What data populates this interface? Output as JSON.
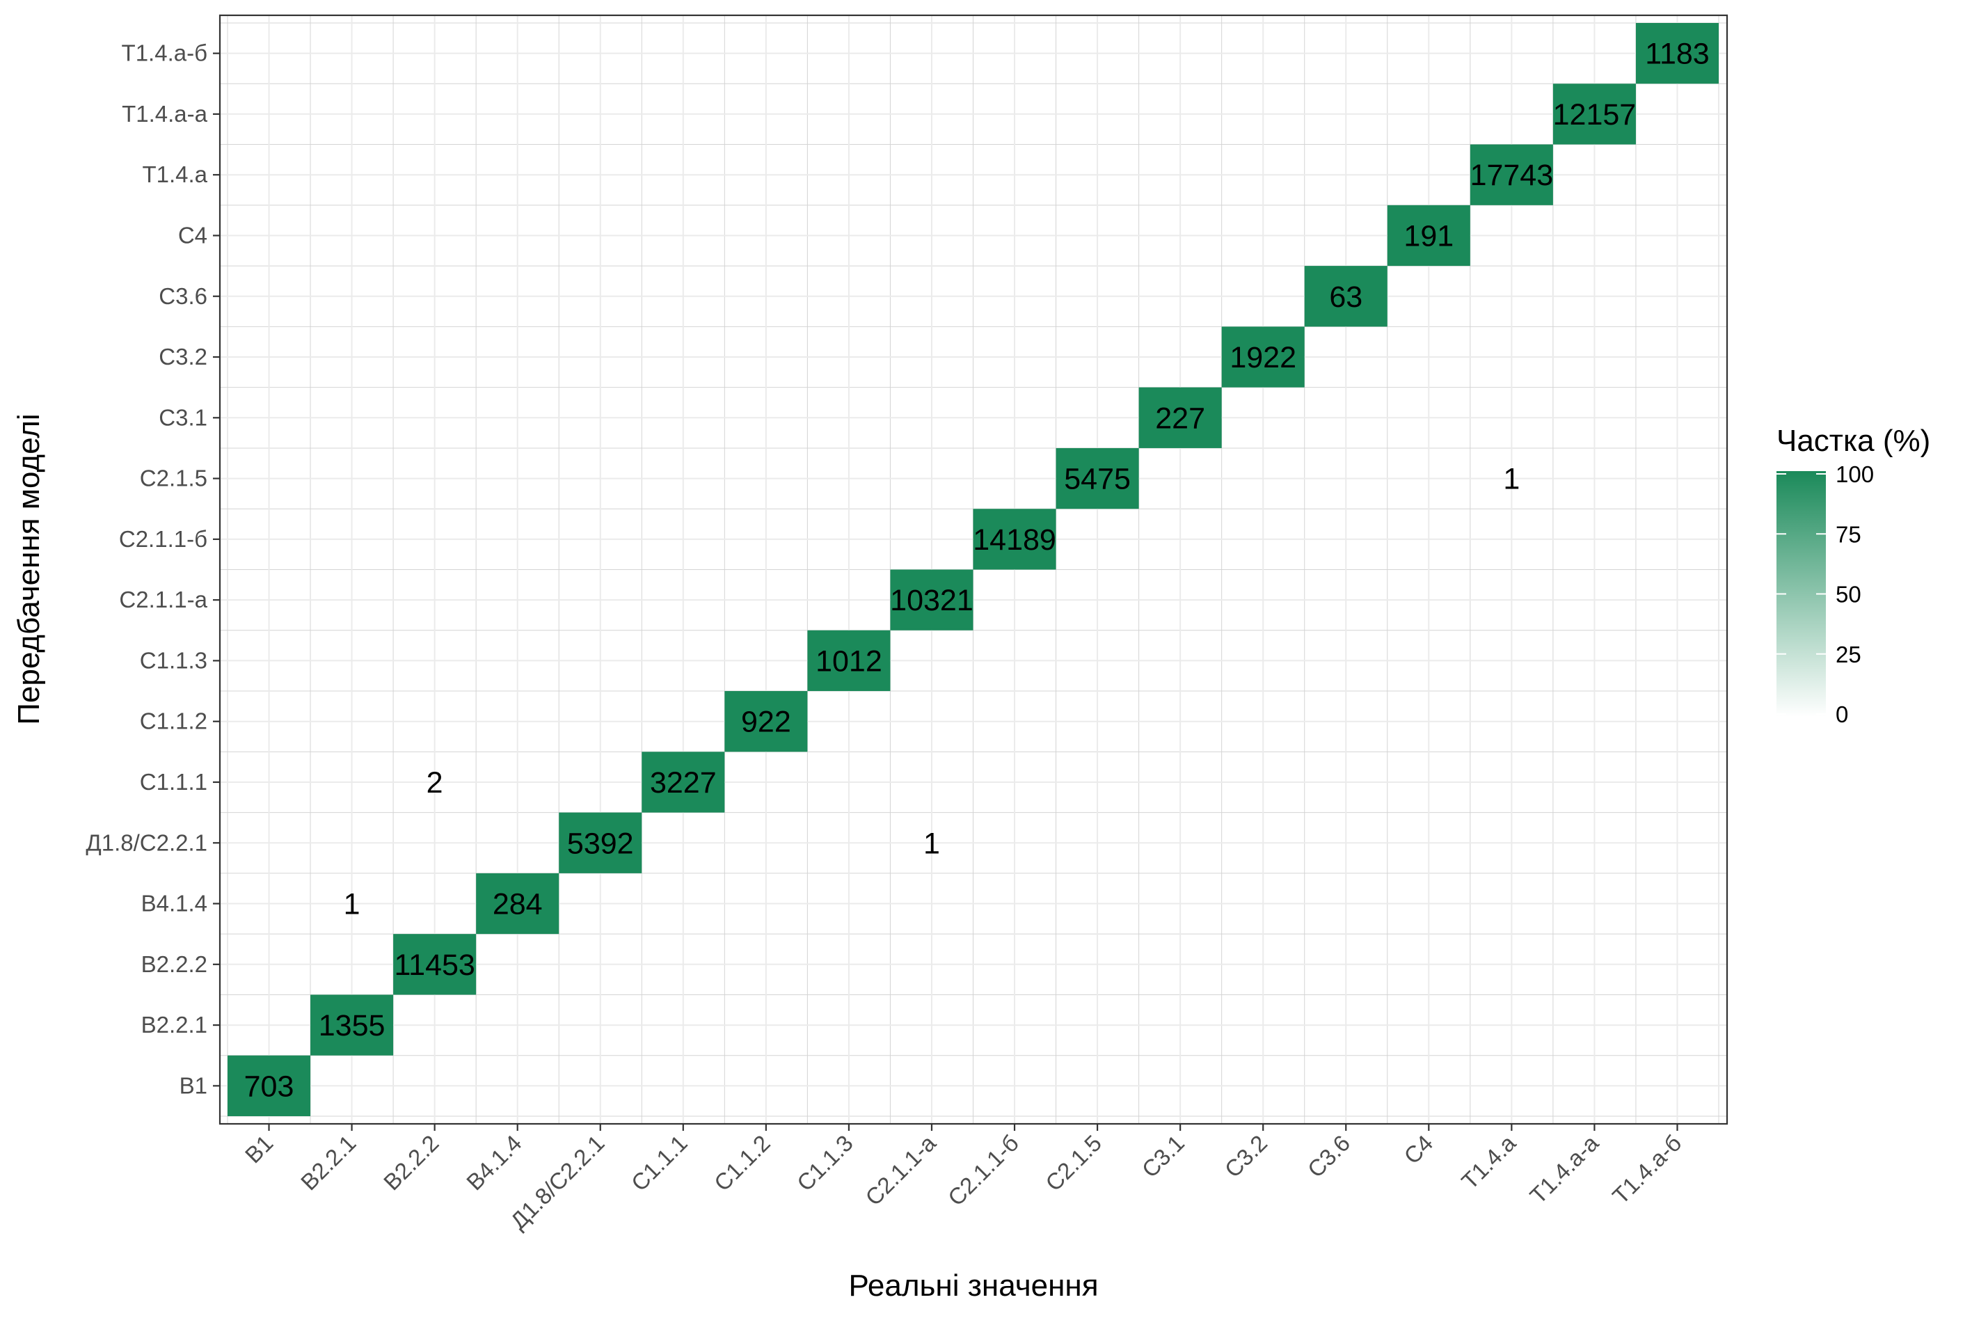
{
  "chart_data": {
    "type": "heatmap",
    "xlabel": "Реальні значення",
    "ylabel": "Передбачення моделі",
    "categories": [
      "B1",
      "B2.2.1",
      "B2.2.2",
      "B4.1.4",
      "Д1.8/C2.2.1",
      "C1.1.1",
      "C1.1.2",
      "C1.1.3",
      "C2.1.1-а",
      "C2.1.1-б",
      "C2.1.5",
      "C3.1",
      "C3.2",
      "C3.6",
      "C4",
      "T1.4.а",
      "T1.4.а-а",
      "T1.4.а-б"
    ],
    "cells": [
      {
        "x": "B1",
        "y": "B1",
        "count": 703,
        "share": 100
      },
      {
        "x": "B2.2.1",
        "y": "B2.2.1",
        "count": 1355,
        "share": 100
      },
      {
        "x": "B2.2.2",
        "y": "B2.2.2",
        "count": 11453,
        "share": 100
      },
      {
        "x": "B4.1.4",
        "y": "B4.1.4",
        "count": 284,
        "share": 100
      },
      {
        "x": "Д1.8/C2.2.1",
        "y": "Д1.8/C2.2.1",
        "count": 5392,
        "share": 100
      },
      {
        "x": "C1.1.1",
        "y": "C1.1.1",
        "count": 3227,
        "share": 100
      },
      {
        "x": "C1.1.2",
        "y": "C1.1.2",
        "count": 922,
        "share": 100
      },
      {
        "x": "C1.1.3",
        "y": "C1.1.3",
        "count": 1012,
        "share": 100
      },
      {
        "x": "C2.1.1-а",
        "y": "C2.1.1-а",
        "count": 10321,
        "share": 100
      },
      {
        "x": "C2.1.1-б",
        "y": "C2.1.1-б",
        "count": 14189,
        "share": 100
      },
      {
        "x": "C2.1.5",
        "y": "C2.1.5",
        "count": 5475,
        "share": 100
      },
      {
        "x": "C3.1",
        "y": "C3.1",
        "count": 227,
        "share": 100
      },
      {
        "x": "C3.2",
        "y": "C3.2",
        "count": 1922,
        "share": 100
      },
      {
        "x": "C3.6",
        "y": "C3.6",
        "count": 63,
        "share": 100
      },
      {
        "x": "C4",
        "y": "C4",
        "count": 191,
        "share": 100
      },
      {
        "x": "T1.4.а",
        "y": "T1.4.а",
        "count": 17743,
        "share": 100
      },
      {
        "x": "T1.4.а-а",
        "y": "T1.4.а-а",
        "count": 12157,
        "share": 100
      },
      {
        "x": "T1.4.а-б",
        "y": "T1.4.а-б",
        "count": 1183,
        "share": 100
      },
      {
        "x": "B2.2.1",
        "y": "B4.1.4",
        "count": 1,
        "share": 0
      },
      {
        "x": "B2.2.2",
        "y": "C1.1.1",
        "count": 2,
        "share": 0
      },
      {
        "x": "C2.1.1-а",
        "y": "Д1.8/C2.2.1",
        "count": 1,
        "share": 0
      },
      {
        "x": "T1.4.а",
        "y": "C2.1.5",
        "count": 1,
        "share": 0
      }
    ],
    "legend": {
      "title": "Частка (%)",
      "range": [
        0,
        100
      ],
      "ticks": [
        0,
        25,
        50,
        75,
        100
      ],
      "placement": "right",
      "color_low": "#ffffff",
      "color_high": "#1b8a5a"
    },
    "grid": true
  }
}
